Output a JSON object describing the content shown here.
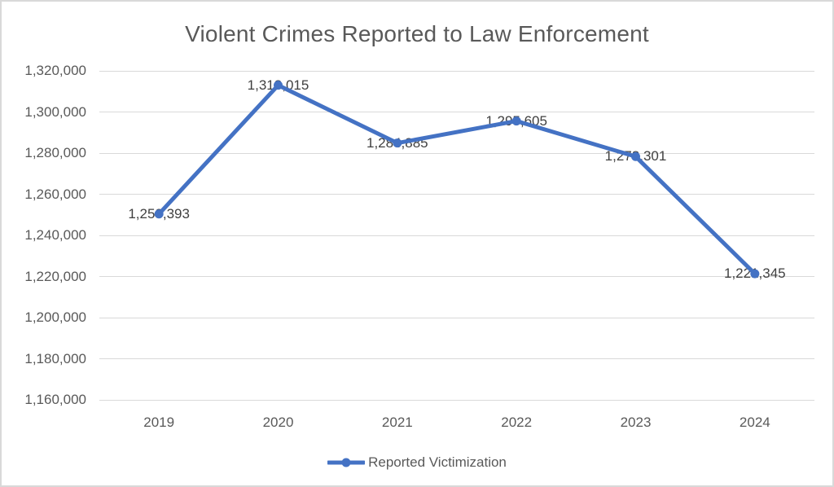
{
  "window": {
    "background": "#FFFFFF",
    "border_color": "#D9D9D9"
  },
  "chart_data": {
    "type": "line",
    "title": "Violent Crimes Reported to Law Enforcement",
    "categories": [
      "2019",
      "2020",
      "2021",
      "2022",
      "2023",
      "2024"
    ],
    "series": [
      {
        "name": "Reported Victimization",
        "values": [
          1250393,
          1313015,
          1284885,
          1295605,
          1278301,
          1221345
        ],
        "data_labels": [
          "1,250,393",
          "1,313,015",
          "1,284,885",
          "1,295,605",
          "1,278,301",
          "1,221,345"
        ],
        "color": "#4472C4",
        "marker": "circle"
      }
    ],
    "xlabel": "",
    "ylabel": "",
    "ylim": [
      1160000,
      1320000
    ],
    "ytick_step": 20000,
    "ytick_labels": [
      "1,160,000",
      "1,180,000",
      "1,200,000",
      "1,220,000",
      "1,240,000",
      "1,260,000",
      "1,280,000",
      "1,300,000",
      "1,320,000"
    ],
    "grid": true,
    "data_label_position": "center",
    "legend": {
      "position": "bottom",
      "entries": [
        "Reported Victimization"
      ]
    },
    "colors": {
      "series_line": "#4472C4",
      "marker_fill": "#4472C4",
      "gridline": "#D9D9D9",
      "axis_text": "#595959",
      "data_label_text": "#404040",
      "title_text": "#595959"
    }
  }
}
